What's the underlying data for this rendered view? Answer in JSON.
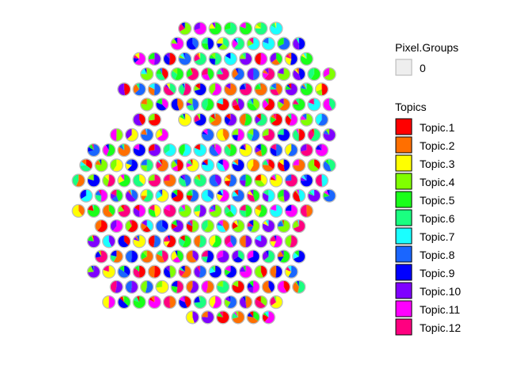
{
  "chart_data": {
    "type": "scatter",
    "subtype": "pie-scatter (spatial topic proportions per spot)",
    "title": "",
    "xlabel": "",
    "ylabel": "",
    "axes_visible": false,
    "grid": false,
    "legend_position": "right",
    "spot_border_color": "#bdbdbd",
    "legends": {
      "pixel_groups": {
        "title": "Pixel.Groups",
        "entries": [
          {
            "label": "0",
            "color": "#eeeeee"
          }
        ]
      },
      "topics": {
        "title": "Topics",
        "entries": [
          {
            "label": "Topic.1",
            "color": "#ff0000"
          },
          {
            "label": "Topic.2",
            "color": "#ff6f00"
          },
          {
            "label": "Topic.3",
            "color": "#ffff00"
          },
          {
            "label": "Topic.4",
            "color": "#80ff00"
          },
          {
            "label": "Topic.5",
            "color": "#1aff1a"
          },
          {
            "label": "Topic.6",
            "color": "#1aff80"
          },
          {
            "label": "Topic.7",
            "color": "#1affff"
          },
          {
            "label": "Topic.8",
            "color": "#1a66ff"
          },
          {
            "label": "Topic.9",
            "color": "#0000ff"
          },
          {
            "label": "Topic.10",
            "color": "#7f00ff"
          },
          {
            "label": "Topic.11",
            "color": "#ff00ff"
          },
          {
            "label": "Topic.12",
            "color": "#ff0080"
          }
        ]
      }
    },
    "grid_layout": {
      "rows": 20,
      "cols": 17,
      "xlim": [
        0,
        16
      ],
      "ylim": [
        0,
        19
      ]
    },
    "spot_rows": [
      {
        "row": 0,
        "cols": [
          8,
          9,
          10,
          11,
          12,
          13,
          14
        ]
      },
      {
        "row": 1,
        "cols": [
          7,
          8,
          9,
          10,
          11,
          12,
          13,
          14,
          15
        ]
      },
      {
        "row": 2,
        "cols": [
          5,
          6,
          7,
          8,
          9,
          10,
          11,
          12,
          13,
          14,
          15,
          16
        ]
      },
      {
        "row": 3,
        "cols": [
          5,
          6,
          7,
          8,
          9,
          10,
          11,
          12,
          13,
          14,
          15,
          16,
          17
        ]
      },
      {
        "row": 4,
        "cols": [
          4,
          5,
          6,
          7,
          8,
          9,
          10,
          11,
          12,
          13,
          14,
          15,
          16,
          17
        ]
      },
      {
        "row": 5,
        "cols": [
          5,
          6,
          7,
          8,
          9,
          10,
          11,
          12,
          13,
          14,
          15,
          16,
          17
        ]
      },
      {
        "row": 6,
        "cols": [
          5,
          6,
          8,
          9,
          10,
          11,
          12,
          13,
          14,
          15,
          16,
          17
        ]
      },
      {
        "row": 7,
        "cols": [
          3,
          4,
          5,
          6,
          9,
          10,
          11,
          12,
          13,
          14,
          15,
          16,
          17
        ]
      },
      {
        "row": 8,
        "cols": [
          2,
          3,
          4,
          5,
          6,
          7,
          8,
          9,
          10,
          11,
          12,
          13,
          14,
          15,
          16,
          17
        ]
      },
      {
        "row": 9,
        "cols": [
          1,
          2,
          3,
          4,
          5,
          6,
          7,
          8,
          9,
          10,
          11,
          12,
          13,
          14,
          15,
          16,
          17
        ]
      },
      {
        "row": 10,
        "cols": [
          1,
          2,
          3,
          4,
          5,
          6,
          7,
          8,
          9,
          10,
          11,
          12,
          13,
          14,
          15,
          16,
          17
        ]
      },
      {
        "row": 11,
        "cols": [
          1,
          2,
          3,
          4,
          5,
          6,
          7,
          8,
          9,
          10,
          11,
          12,
          13,
          14,
          15,
          16,
          17
        ]
      },
      {
        "row": 12,
        "cols": [
          1,
          2,
          3,
          4,
          5,
          6,
          7,
          8,
          9,
          10,
          11,
          12,
          13,
          14,
          15,
          16
        ]
      },
      {
        "row": 13,
        "cols": [
          2,
          3,
          4,
          5,
          6,
          7,
          8,
          9,
          10,
          11,
          12,
          13,
          14,
          15
        ]
      },
      {
        "row": 14,
        "cols": [
          2,
          3,
          4,
          5,
          6,
          7,
          8,
          9,
          10,
          11,
          12,
          13,
          14,
          15
        ]
      },
      {
        "row": 15,
        "cols": [
          2,
          3,
          4,
          5,
          6,
          7,
          8,
          9,
          10,
          11,
          12,
          13,
          14,
          15
        ]
      },
      {
        "row": 16,
        "cols": [
          2,
          3,
          4,
          5,
          6,
          7,
          8,
          9,
          10,
          11,
          12,
          13,
          14,
          15
        ]
      },
      {
        "row": 17,
        "cols": [
          3,
          4,
          5,
          6,
          7,
          8,
          9,
          10,
          11,
          12,
          13,
          14,
          15
        ]
      },
      {
        "row": 18,
        "cols": [
          3,
          4,
          5,
          6,
          7,
          8,
          9,
          10,
          11,
          12,
          13,
          14
        ]
      },
      {
        "row": 19,
        "cols": [
          8,
          9,
          10,
          11,
          12,
          13
        ]
      }
    ],
    "dominant_topic_note": "Each spot is a pie of 12 topic proportions; values estimated visually"
  }
}
